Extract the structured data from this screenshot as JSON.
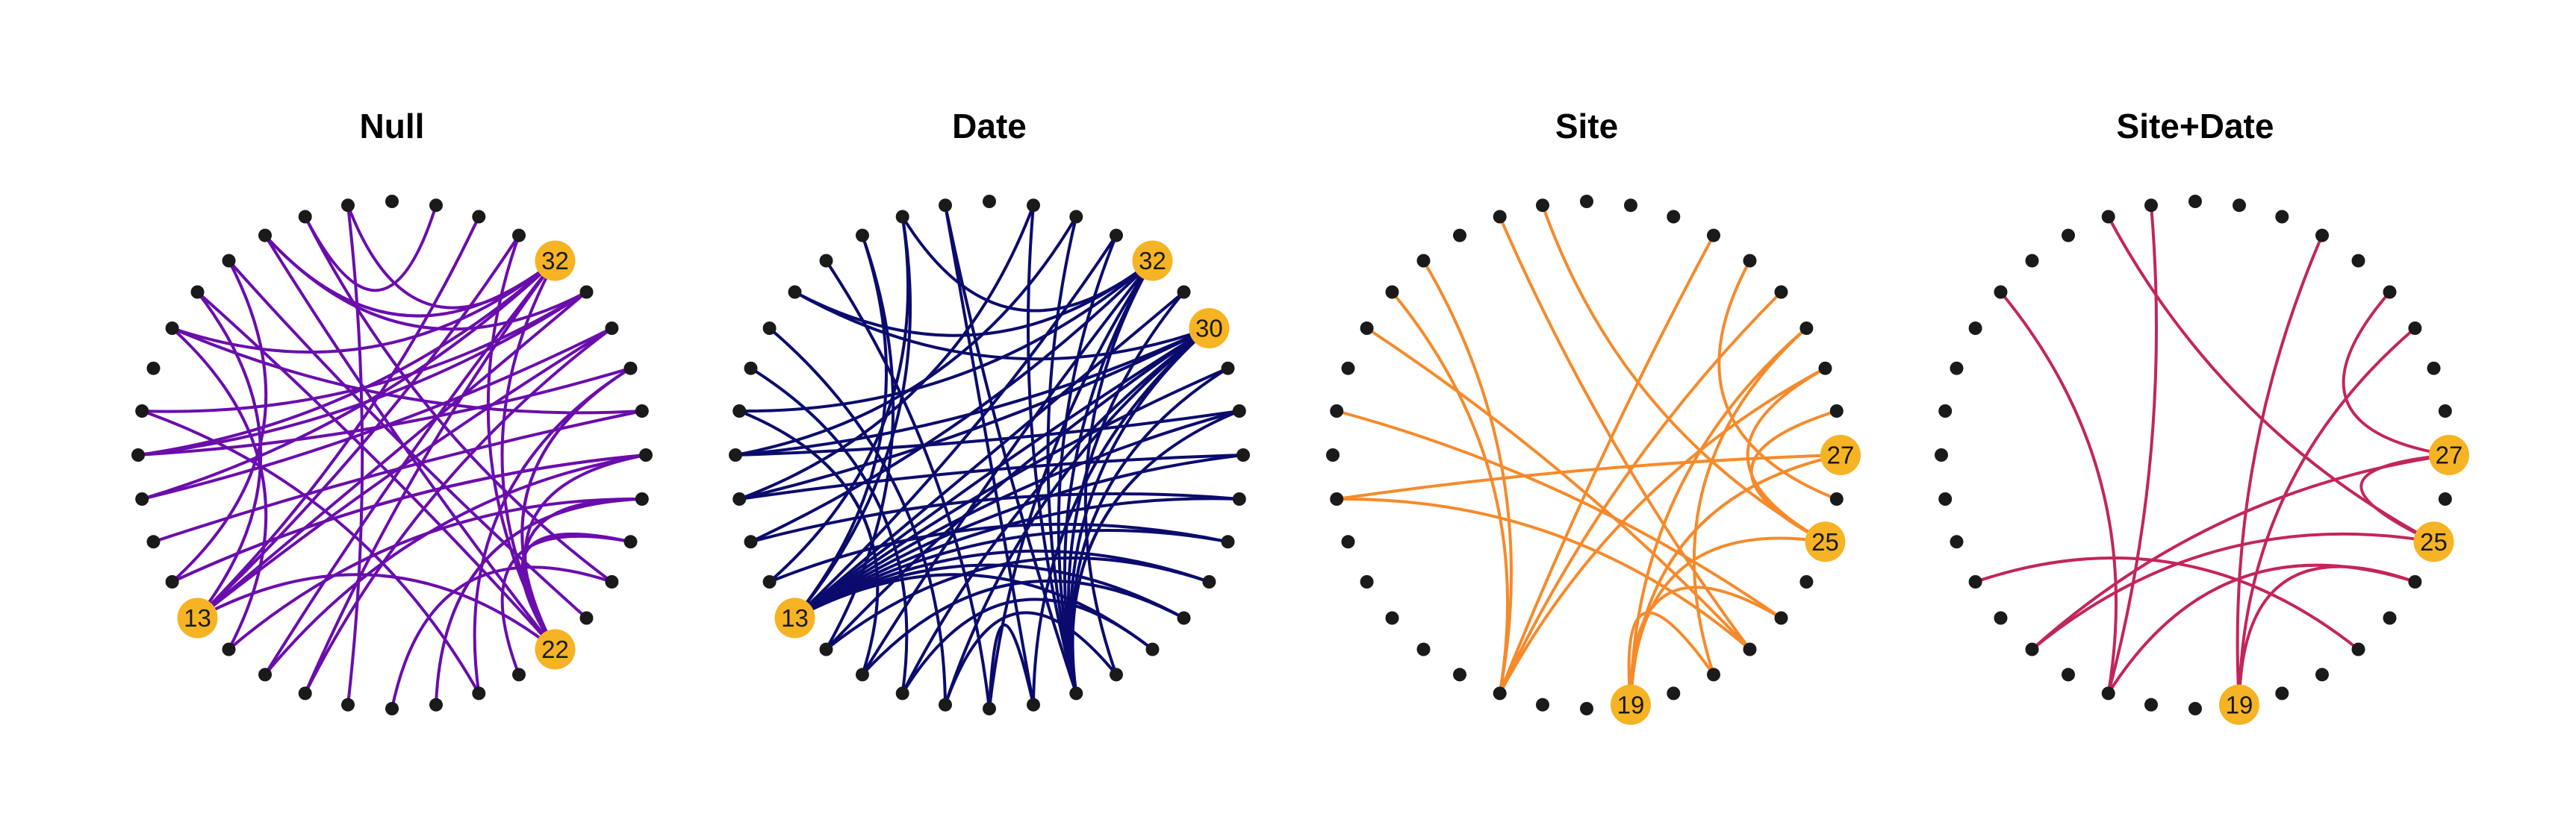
{
  "panels": [
    {
      "title": "Null",
      "edge_color": "#6a0dad",
      "highlighted_nodes": [
        "13",
        "22",
        "32"
      ],
      "edge_count": 44
    },
    {
      "title": "Date",
      "edge_color": "#0b0b6e",
      "highlighted_nodes": [
        "13",
        "30",
        "32"
      ],
      "edge_count": 54
    },
    {
      "title": "Site",
      "edge_color": "#f58a2b",
      "highlighted_nodes": [
        "19",
        "25",
        "27"
      ],
      "edge_count": 20
    },
    {
      "title": "Site+Date",
      "edge_color": "#c2255c",
      "highlighted_nodes": [
        "19",
        "25",
        "27"
      ],
      "edge_count": 12
    }
  ],
  "node_color": "#1a1a1a",
  "highlight_color": "#f6b323",
  "node_count": 36
}
